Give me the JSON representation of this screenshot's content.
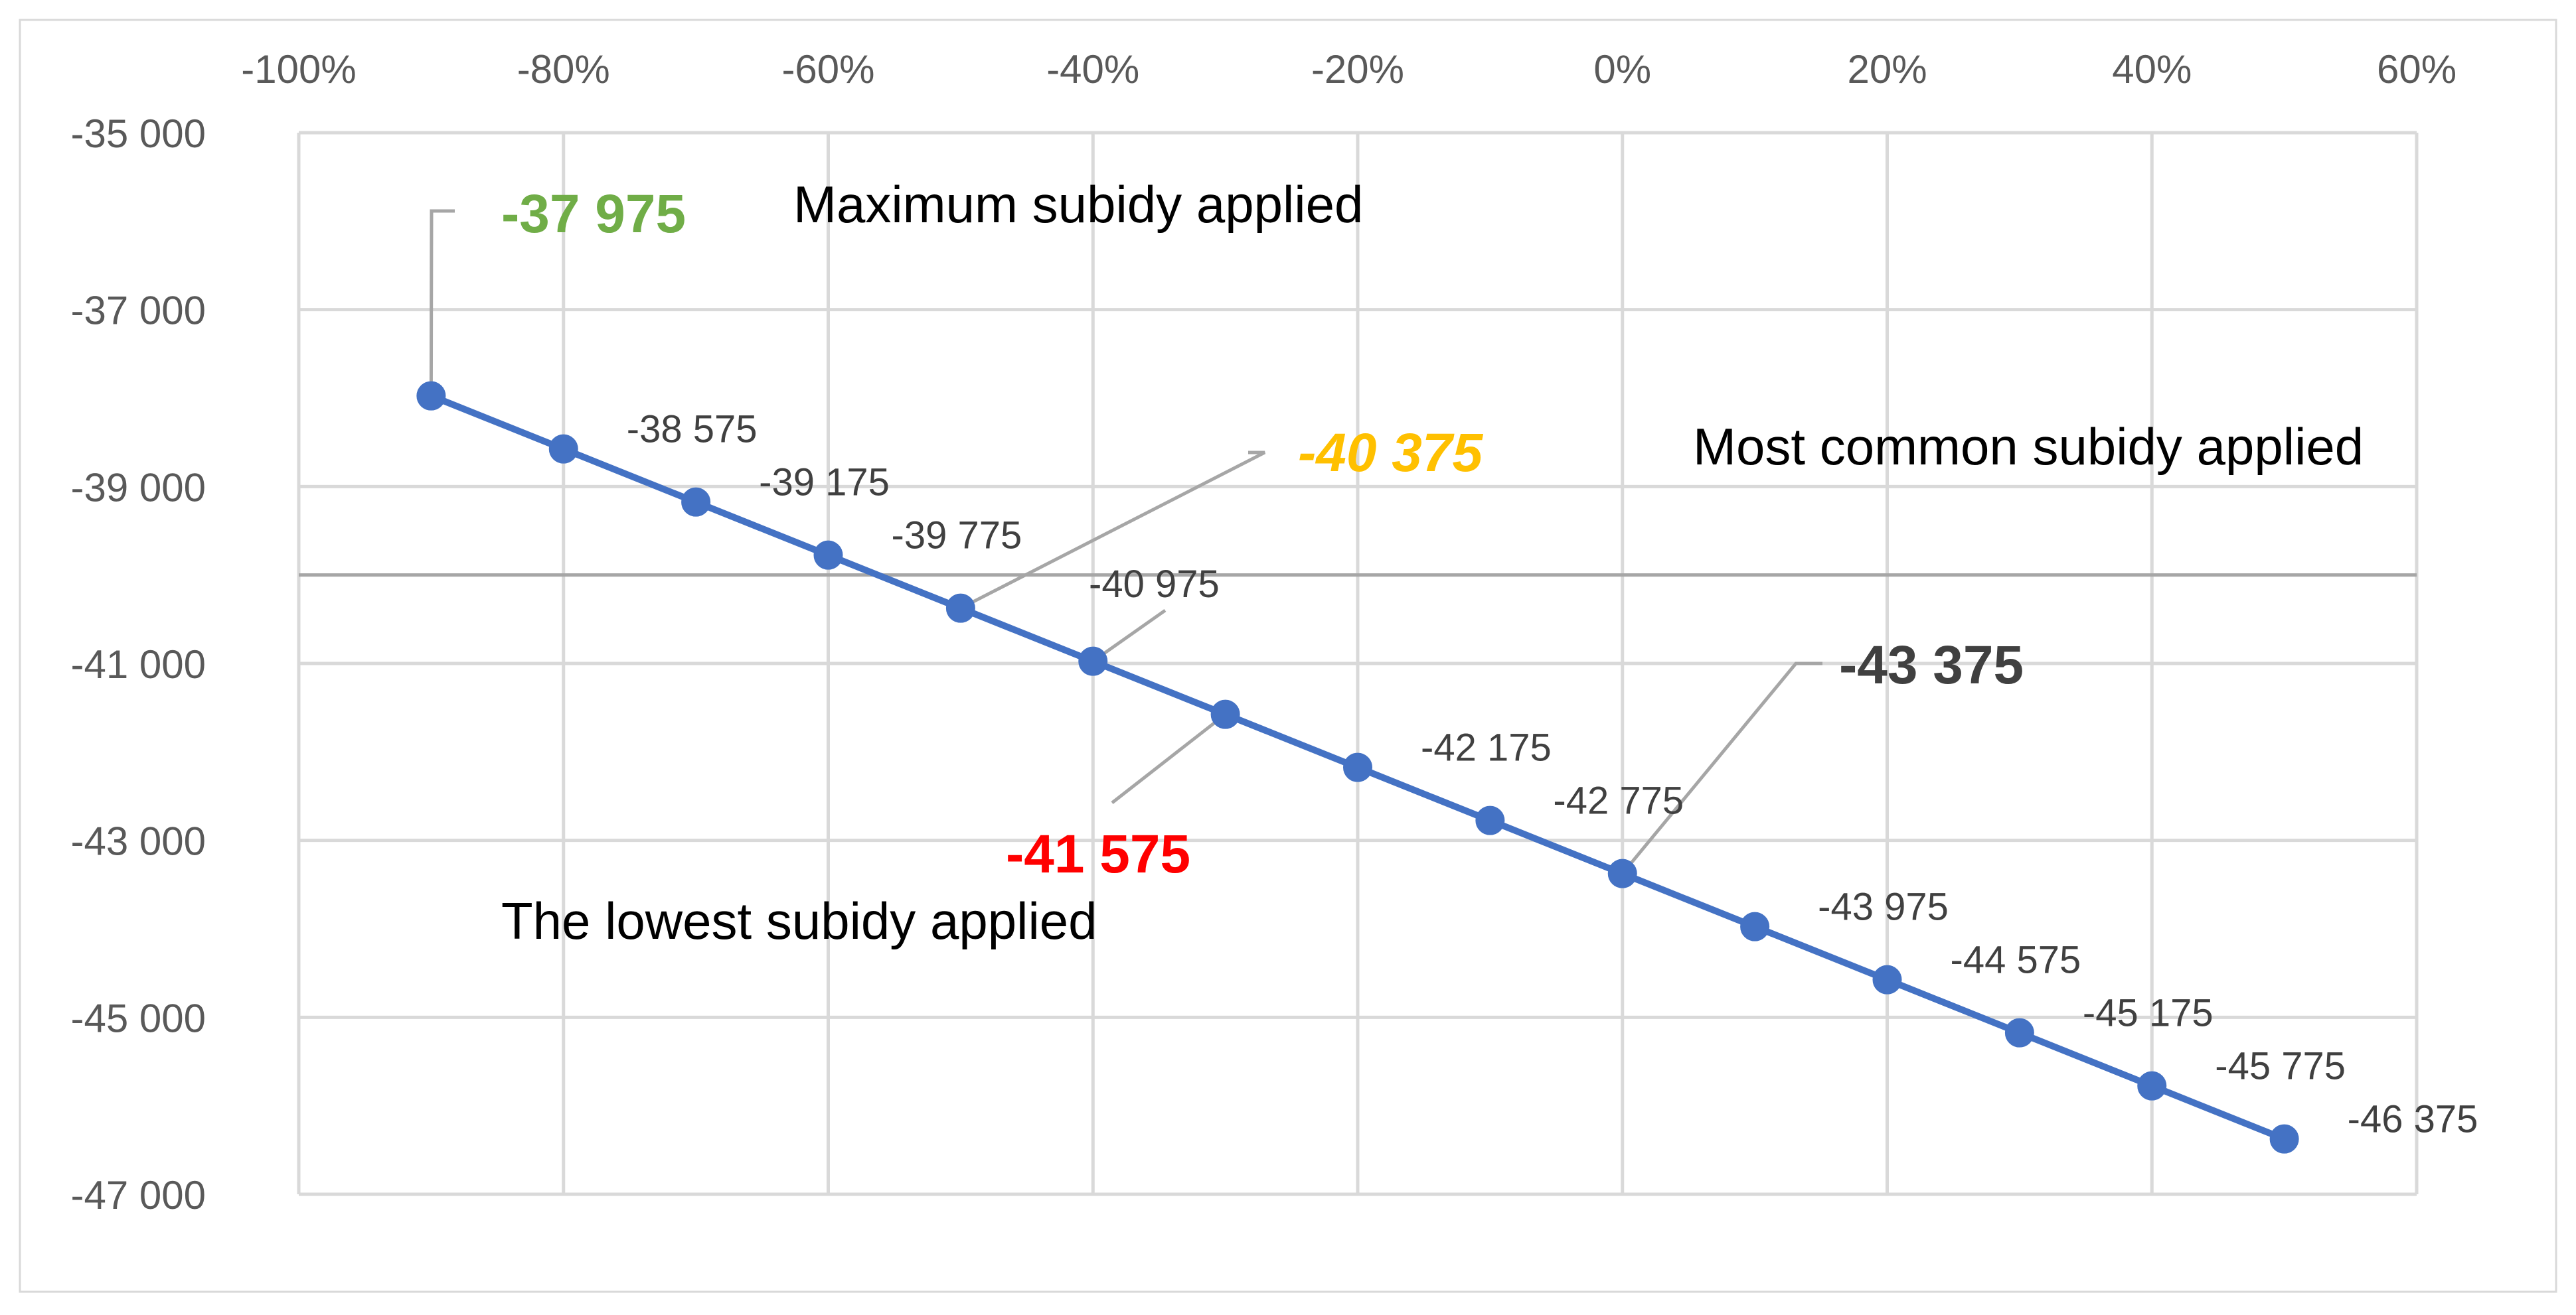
{
  "chart_data": {
    "type": "line",
    "title": "",
    "xlabel": "",
    "ylabel": "",
    "x_axis": {
      "position": "top",
      "range": [
        -1.0,
        0.6
      ],
      "ticks": [
        -1.0,
        -0.8,
        -0.6,
        -0.4,
        -0.2,
        0.0,
        0.2,
        0.4,
        0.6
      ],
      "tick_labels": [
        "-100%",
        "-80%",
        "-60%",
        "-40%",
        "-20%",
        "0%",
        "20%",
        "40%",
        "60%"
      ]
    },
    "y_axis": {
      "range": [
        -47000,
        -35000
      ],
      "ticks": [
        -35000,
        -37000,
        -39000,
        -41000,
        -43000,
        -45000,
        -47000
      ],
      "tick_labels": [
        "-35 000",
        "-37 000",
        "-39 000",
        "-41 000",
        "-43 000",
        "-45 000",
        "-47 000"
      ],
      "extra_gridline": -40000
    },
    "grid": true,
    "legend": "none",
    "series": [
      {
        "color": "#4472C4",
        "x": [
          -0.9,
          -0.8,
          -0.7,
          -0.6,
          -0.5,
          -0.4,
          -0.3,
          -0.2,
          -0.1,
          0.0,
          0.1,
          0.2,
          0.3,
          0.4,
          0.5
        ],
        "y": [
          -37975,
          -38575,
          -39175,
          -39775,
          -40375,
          -40975,
          -41575,
          -42175,
          -42775,
          -43375,
          -43975,
          -44575,
          -45175,
          -45775,
          -46375
        ],
        "labels": [
          "-37 975",
          "-38 575",
          "-39 175",
          "-39 775",
          "-40 375",
          "-40 975",
          "-41 575",
          "-42 175",
          "-42 775",
          "-43 375",
          "-43 975",
          "-44 575",
          "-45 175",
          "-45 775",
          "-46 375"
        ]
      }
    ],
    "highlights": [
      {
        "index": 0,
        "color": "#70AD47",
        "italic": false
      },
      {
        "index": 4,
        "color": "#FFC000",
        "italic": true
      },
      {
        "index": 6,
        "color": "#FF0000",
        "italic": false
      },
      {
        "index": 9,
        "color": "#404040",
        "italic": false
      }
    ],
    "annotations": [
      {
        "text": "Maximum subidy applied"
      },
      {
        "text": "Most common subidy applied"
      },
      {
        "text": "The lowest subidy applied"
      }
    ],
    "colors": {
      "line": "#4472C4",
      "gridline": "#D9D9D9",
      "extra_gridline": "#A6A6A6",
      "leader": "#A6A6A6",
      "tick_label": "#595959",
      "data_label": "#404040",
      "annotation": "#000000"
    }
  }
}
